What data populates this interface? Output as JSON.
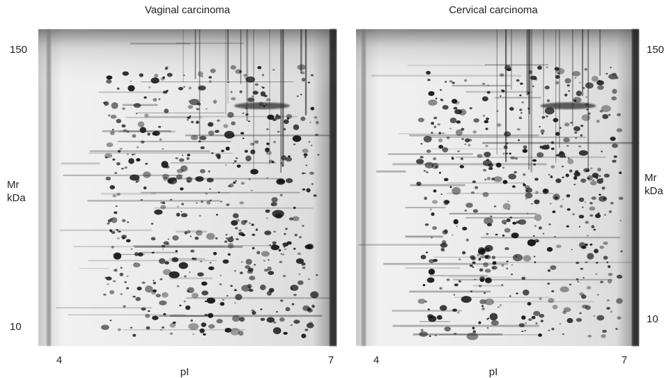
{
  "panels": [
    {
      "title": "Vaginal carcinoma",
      "x_ticks": [
        "4",
        "7"
      ],
      "x_label": "pI",
      "y_ticks": [
        "150",
        "10"
      ],
      "y_label": [
        "Mr",
        "kDa"
      ]
    },
    {
      "title": "Cervical carcinoma",
      "x_ticks": [
        "4",
        "7"
      ],
      "x_label": "pI",
      "y_ticks": [
        "150",
        "10"
      ],
      "y_label": [
        "Mr",
        "kDa"
      ]
    }
  ]
}
